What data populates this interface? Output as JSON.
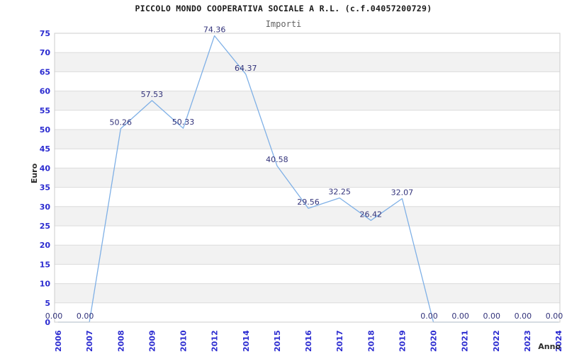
{
  "chart_data": {
    "type": "line",
    "title": "PICCOLO MONDO COOPERATIVA SOCIALE A R.L. (c.f.04057200729)",
    "subtitle": "Importi",
    "xlabel": "Anno",
    "ylabel": "Euro",
    "categories": [
      "2006",
      "2007",
      "2008",
      "2009",
      "2010",
      "2012",
      "2014",
      "2015",
      "2016",
      "2017",
      "2018",
      "2019",
      "2020",
      "2021",
      "2022",
      "2023",
      "2024"
    ],
    "values": [
      0,
      0,
      50.26,
      57.53,
      50.33,
      74.36,
      64.37,
      40.58,
      29.56,
      32.25,
      26.42,
      32.07,
      0,
      0,
      0,
      0,
      0
    ],
    "point_labels": [
      "0.00",
      "0.00",
      "50.26",
      "57.53",
      "50.33",
      "74.36",
      "64.37",
      "40.58",
      "29.56",
      "32.25",
      "26.42",
      "32.07",
      "0.00",
      "0.00",
      "0.00",
      "0.00",
      "0.00"
    ],
    "yticks": [
      0,
      5,
      10,
      15,
      20,
      25,
      30,
      35,
      40,
      45,
      50,
      55,
      60,
      65,
      70,
      75
    ],
    "ylim": [
      0,
      75
    ],
    "legend": "none",
    "grid": "horizontal gridlines with alternating gray bands",
    "colors": {
      "line": "#7fb0e6",
      "tick_text": "#2b2bd0",
      "data_label_text": "#32327a",
      "band": "#f2f2f2",
      "gridline": "#dcdcdc",
      "plot_border": "#cccccc",
      "title_text": "#1a1a1a",
      "subtitle_text": "#636363",
      "axis_title_text": "#2a2a2a",
      "background": "#ffffff"
    }
  }
}
